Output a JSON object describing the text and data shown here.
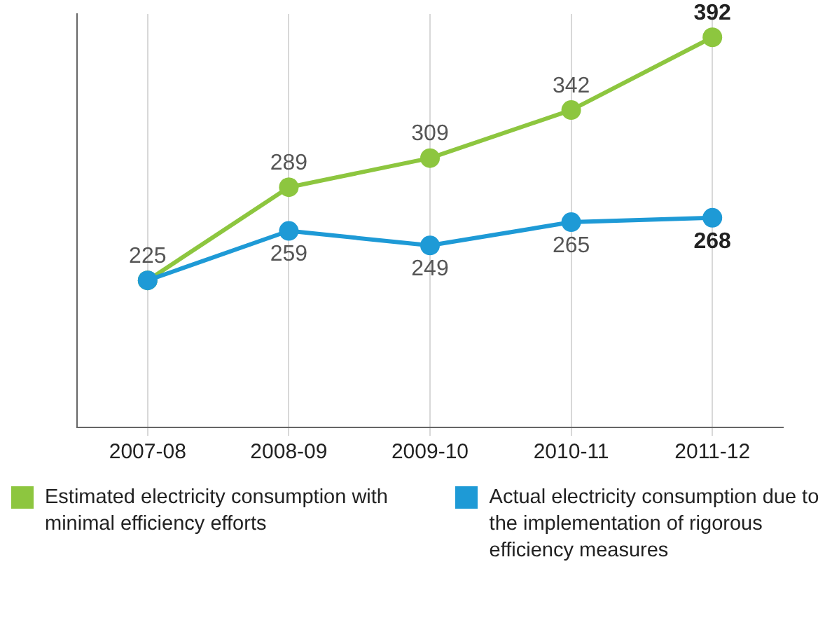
{
  "chart_data": {
    "type": "line",
    "categories": [
      "2007-08",
      "2008-09",
      "2009-10",
      "2010-11",
      "2011-12"
    ],
    "series": [
      {
        "name": "Estimated electricity consumption with minimal efficiency efforts",
        "color": "#8dc63f",
        "values": [
          225,
          289,
          309,
          342,
          392
        ],
        "value_labels": [
          "225",
          "289",
          "309",
          "342",
          "392"
        ]
      },
      {
        "name": "Actual electricity consumption due to the implementation of rigorous efficiency measures",
        "color": "#1e9ad6",
        "values": [
          225,
          259,
          249,
          265,
          268
        ],
        "value_labels": [
          null,
          "259",
          "249",
          "265",
          "268"
        ]
      }
    ],
    "ylim": [
      124,
      408
    ],
    "tick_labels": "x",
    "grid": "x",
    "legend": "bottom",
    "marker": "circle",
    "line_style": "solid"
  }
}
